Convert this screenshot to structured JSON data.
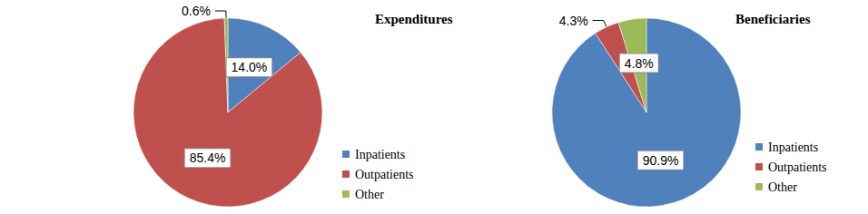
{
  "chart_data": [
    {
      "type": "pie",
      "title": "Expenditures",
      "categories": [
        "Inpatients",
        "Outpatients",
        "Other"
      ],
      "values": [
        14.0,
        85.4,
        0.6
      ],
      "value_labels": [
        "14.0%",
        "85.4%",
        "0.6%"
      ],
      "colors": [
        "#4f81bd",
        "#c0504d",
        "#9bbb59"
      ],
      "legend": "lower right",
      "data_labels": true
    },
    {
      "type": "pie",
      "title": "Beneficiaries",
      "categories": [
        "Inpatients",
        "Outpatients",
        "Other"
      ],
      "values": [
        90.9,
        4.3,
        4.8
      ],
      "value_labels": [
        "90.9%",
        "4.3%",
        "4.8%"
      ],
      "colors": [
        "#4f81bd",
        "#c0504d",
        "#9bbb59"
      ],
      "legend": "lower right",
      "data_labels": true
    }
  ]
}
